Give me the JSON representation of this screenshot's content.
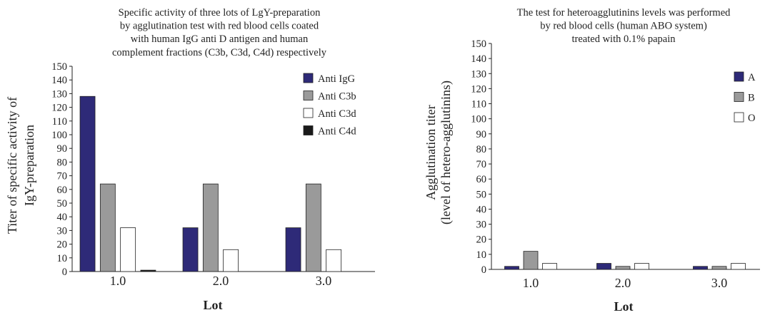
{
  "chart_data": [
    {
      "type": "bar",
      "title": [
        "Specific activity of three lots of LgY-preparation",
        "by agglutination test with red blood cells coated",
        "with human IgG anti D antigen and human",
        "complement fractions (C3b, C3d, C4d) respectively"
      ],
      "xlabel": "Lot",
      "ylabel": [
        "Titer of specific activity of",
        "IgY-preparation"
      ],
      "categories": [
        "1.0",
        "2.0",
        "3.0"
      ],
      "ylim": [
        0,
        150
      ],
      "yticks": [
        0,
        10,
        20,
        30,
        40,
        50,
        60,
        70,
        80,
        90,
        100,
        110,
        120,
        130,
        140,
        150
      ],
      "grid": false,
      "legend_position": "top-right",
      "series": [
        {
          "name": "Anti IgG",
          "color": "#2e2a78",
          "values": [
            128,
            32,
            32
          ]
        },
        {
          "name": "Anti C3b",
          "color": "#9a9a9a",
          "values": [
            64,
            64,
            64
          ]
        },
        {
          "name": "Anti C3d",
          "color": "#ffffff",
          "values": [
            32,
            16,
            16
          ]
        },
        {
          "name": "Anti C4d",
          "color": "#1a1a1a",
          "values": [
            1,
            0,
            0
          ]
        }
      ]
    },
    {
      "type": "bar",
      "title": [
        "The test for heteroagglutinins levels was performed",
        "by red blood cells (human ABO system)",
        "treated with 0.1% papain"
      ],
      "xlabel": "Lot",
      "ylabel": [
        "Agglutination titer",
        "(level of hetero-agglutinins)"
      ],
      "categories": [
        "1.0",
        "2.0",
        "3.0"
      ],
      "ylim": [
        0,
        150
      ],
      "yticks": [
        0,
        10,
        20,
        30,
        40,
        50,
        60,
        70,
        80,
        90,
        100,
        110,
        120,
        130,
        140,
        150
      ],
      "grid": false,
      "legend_position": "top-right",
      "series": [
        {
          "name": "A",
          "color": "#2e2a78",
          "values": [
            2,
            4,
            2
          ]
        },
        {
          "name": "B",
          "color": "#9a9a9a",
          "values": [
            12,
            2,
            2
          ]
        },
        {
          "name": "O",
          "color": "#ffffff",
          "values": [
            4,
            4,
            4
          ]
        }
      ]
    }
  ]
}
